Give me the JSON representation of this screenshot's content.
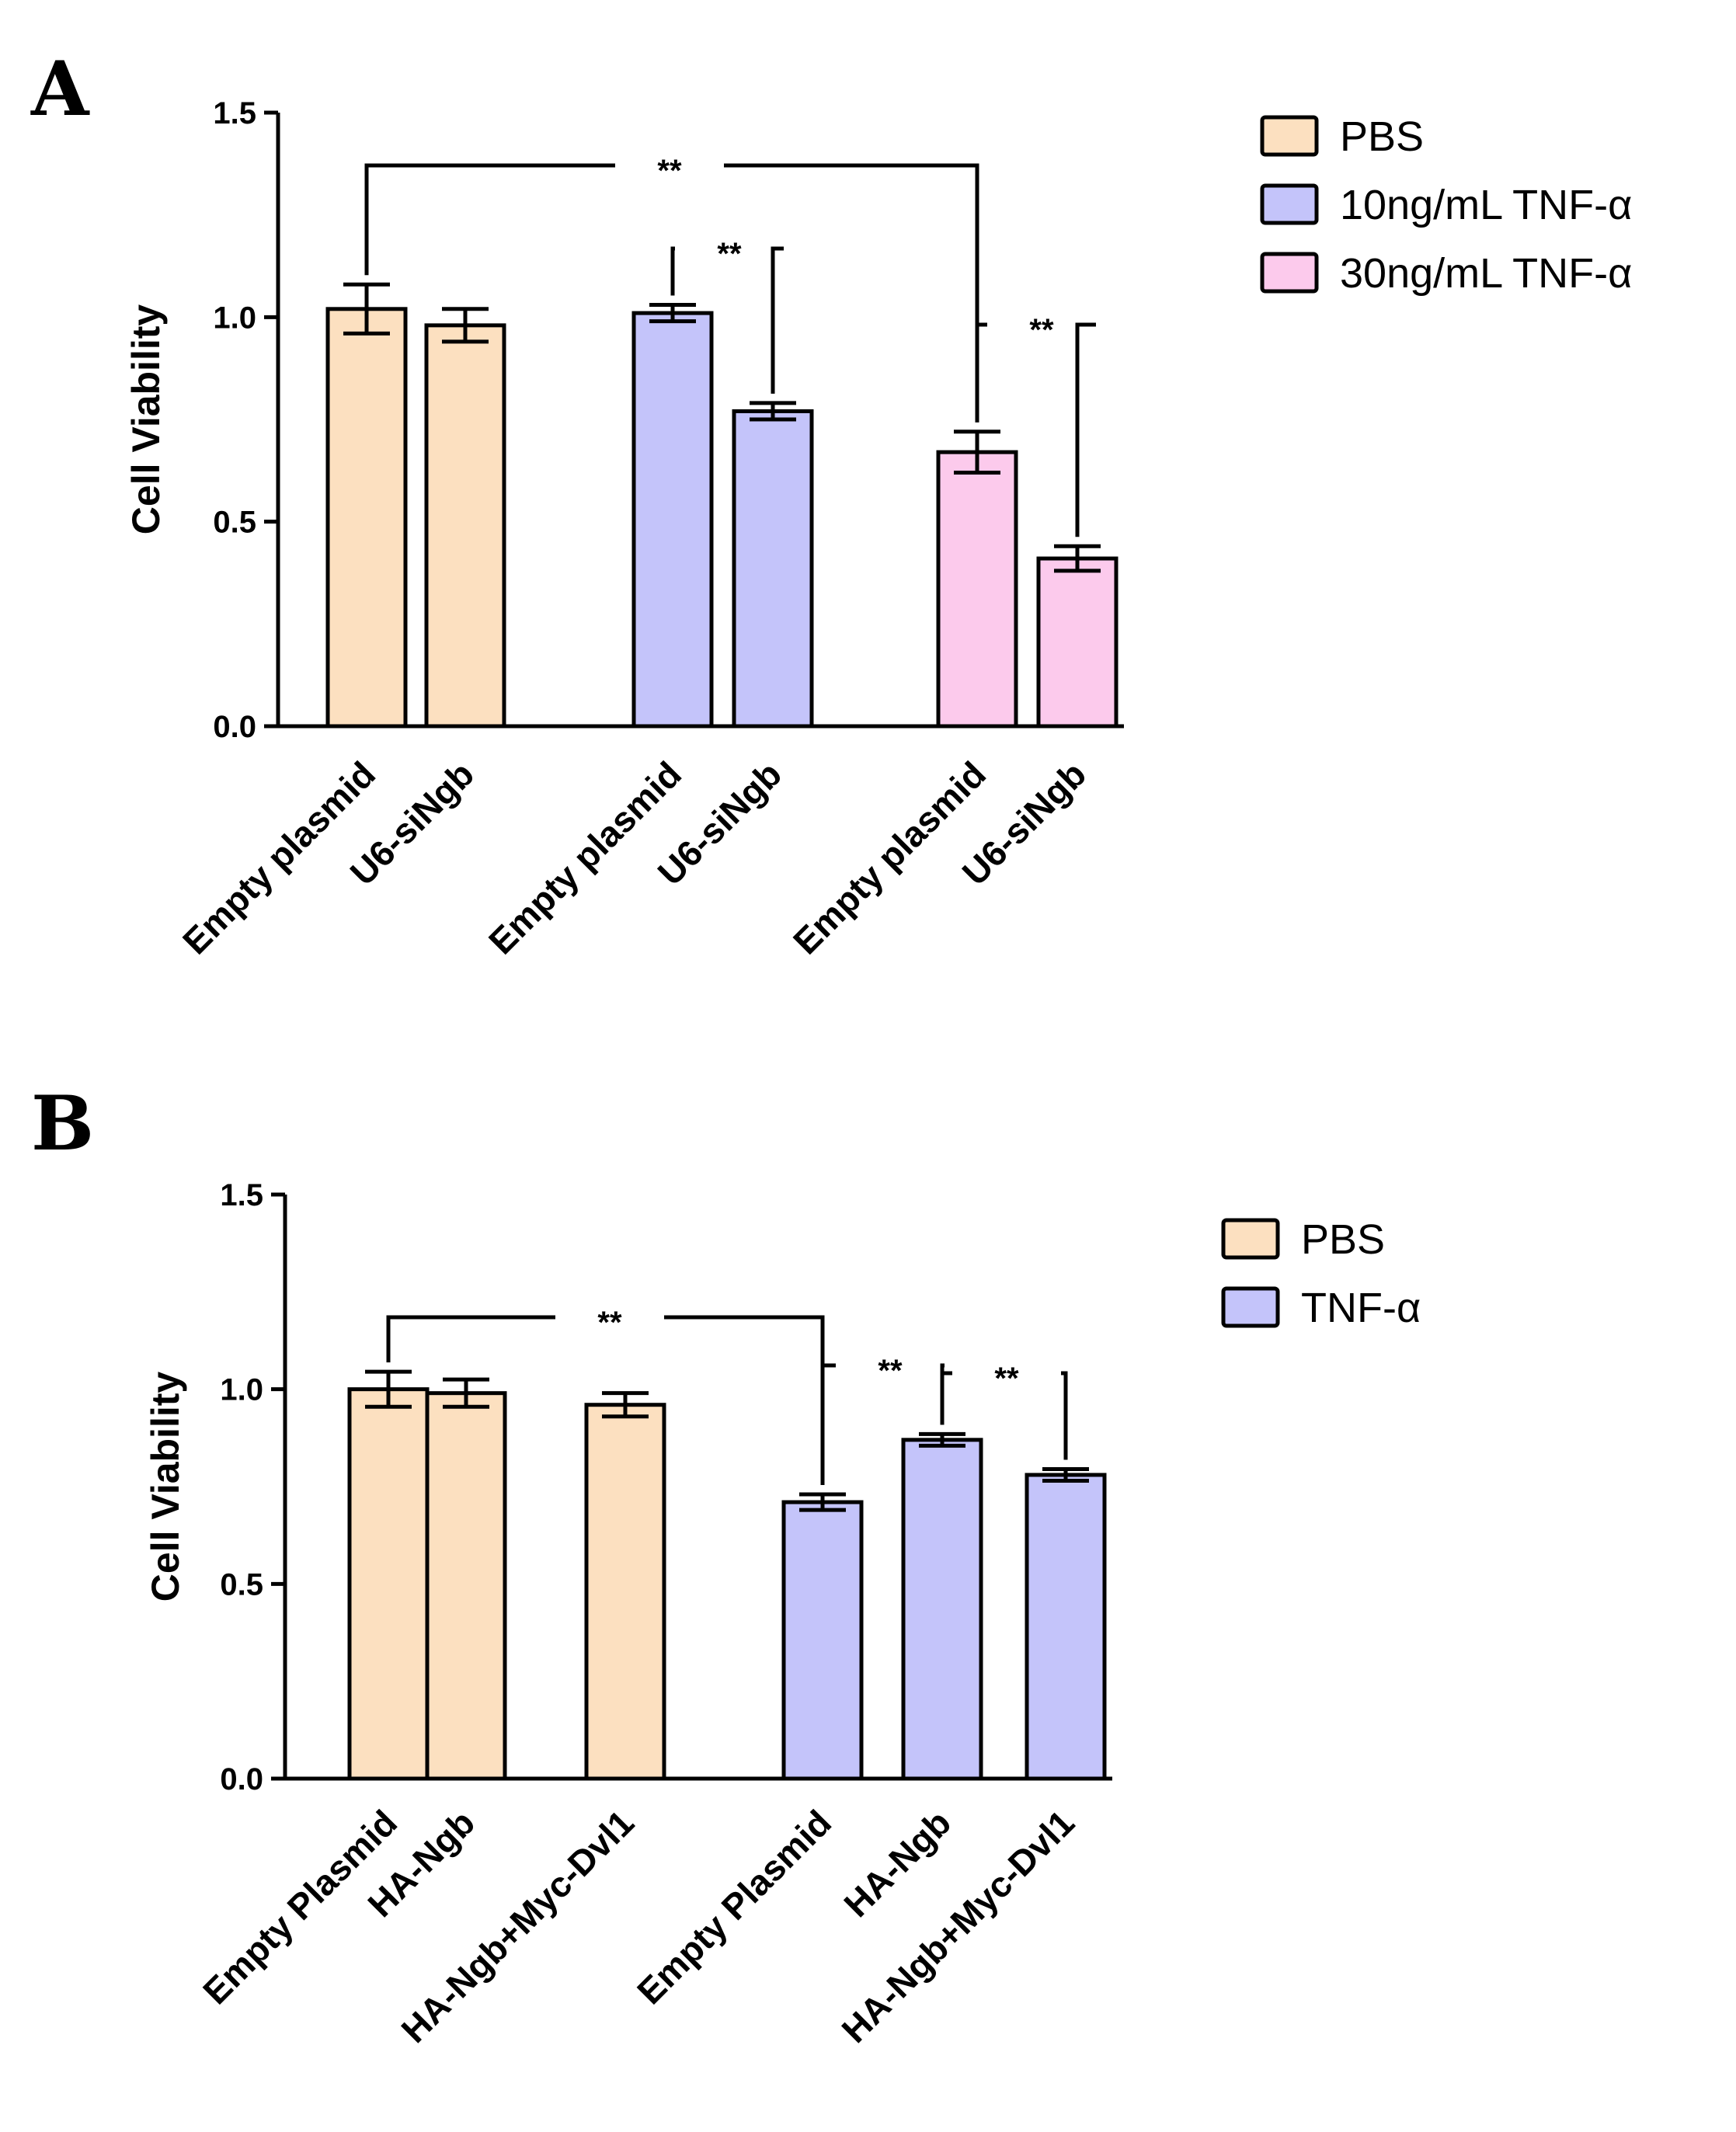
{
  "chart_data": [
    {
      "panel": "A",
      "type": "bar",
      "ylabel": "Cell Viability",
      "ylim": [
        0,
        1.5
      ],
      "yticks": [
        "0.0",
        "0.5",
        "1.0",
        "1.5"
      ],
      "categories": [
        "Empty plasmid",
        "U6-siNgb",
        "Empty plasmid",
        "U6-siNgb",
        "Empty plasmid",
        "U6-siNgb"
      ],
      "values": [
        1.02,
        0.98,
        1.01,
        0.77,
        0.67,
        0.41
      ],
      "errors": [
        0.06,
        0.04,
        0.02,
        0.02,
        0.05,
        0.03
      ],
      "group_of_bar": [
        0,
        0,
        1,
        1,
        2,
        2
      ],
      "legend": [
        {
          "label": "PBS",
          "color": "#fce0c0"
        },
        {
          "label": "10ng/mL TNF-α",
          "color": "#c4c4fa"
        },
        {
          "label": "30ng/mL TNF-α",
          "color": "#fccaec"
        }
      ],
      "legend_position": "top-right",
      "significance": [
        {
          "from": 0,
          "to": 4,
          "label": "**"
        },
        {
          "from": 2,
          "to": 3,
          "label": "**"
        },
        {
          "from": 4,
          "to": 5,
          "label": "**"
        }
      ]
    },
    {
      "panel": "B",
      "type": "bar",
      "ylabel": "Cell Viability",
      "ylim": [
        0,
        1.5
      ],
      "yticks": [
        "0.0",
        "0.5",
        "1.0",
        "1.5"
      ],
      "categories": [
        "Empty Plasmid",
        "HA-Ngb",
        "HA-Ngb+Myc-Dvl1",
        "Empty Plasmid",
        "HA-Ngb",
        "HA-Ngb+Myc-Dvl1"
      ],
      "values": [
        1.0,
        0.99,
        0.96,
        0.71,
        0.87,
        0.78
      ],
      "errors": [
        0.045,
        0.035,
        0.03,
        0.02,
        0.015,
        0.015
      ],
      "group_of_bar": [
        0,
        0,
        0,
        1,
        1,
        1
      ],
      "legend": [
        {
          "label": "PBS",
          "color": "#fce0c0"
        },
        {
          "label": "TNF-α",
          "color": "#c4c4fa"
        }
      ],
      "legend_position": "top-right",
      "significance": [
        {
          "from": 0,
          "to": 3,
          "label": "**"
        },
        {
          "from": 3,
          "to": 4,
          "label": "**"
        },
        {
          "from": 4,
          "to": 5,
          "label": "**"
        }
      ]
    }
  ]
}
